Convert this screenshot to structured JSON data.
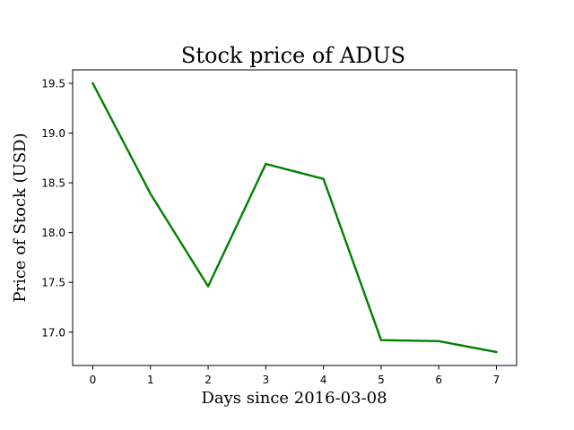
{
  "chart_data": {
    "type": "line",
    "title": "Stock price of ADUS",
    "xlabel": "Days since 2016-03-08",
    "ylabel": "Price of Stock (USD)",
    "x": [
      0,
      1,
      2,
      3,
      4,
      5,
      6,
      7
    ],
    "series": [
      {
        "values": [
          19.5,
          18.39,
          17.46,
          18.69,
          18.54,
          16.92,
          16.91,
          16.8
        ],
        "color": "#008000"
      }
    ],
    "xticks": [
      0,
      1,
      2,
      3,
      4,
      5,
      6,
      7
    ],
    "yticks": [
      17.0,
      17.5,
      18.0,
      18.5,
      19.0,
      19.5
    ],
    "xlim": [
      -0.35,
      7.35
    ],
    "ylim": [
      16.665,
      19.635
    ],
    "grid": false,
    "legend": "none"
  }
}
